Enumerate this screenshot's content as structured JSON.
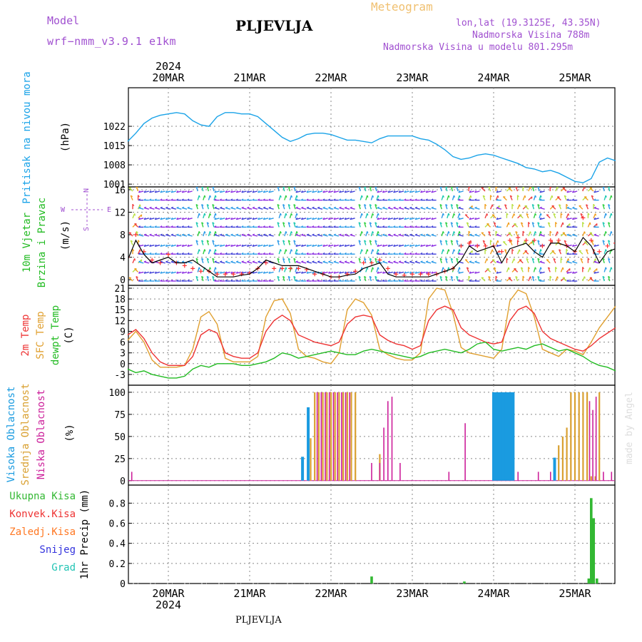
{
  "header": {
    "model_label": "Model",
    "model_name": "wrf−nmm_v3.9.1  e1km",
    "station": "PLJEVLJA",
    "product": "Meteogram",
    "coords": "lon,lat (19.3125E, 43.35N)",
    "altitude": "Nadmorska Visina 788m",
    "model_altitude": "Nadmorska Visina u modelu 801.295m",
    "watermark": "made by Angel",
    "footer_station": "PLJEVLJA"
  },
  "time_axis": {
    "year": "2024",
    "dates": [
      "20MAR",
      "21MAR",
      "22MAR",
      "23MAR",
      "24MAR",
      "25MAR"
    ]
  },
  "panels": {
    "pressure": {
      "labels": [
        "Pritisak na nivou mora"
      ],
      "unit": "(hPa)"
    },
    "wind": {
      "labels": [
        "10m Vjetar",
        "Brzina i Pravac"
      ],
      "unit": "(m/s)",
      "compass": {
        "n": "N",
        "s": "S",
        "e": "E",
        "w": "W"
      }
    },
    "temp": {
      "labels": [
        "2m Temp",
        "SFC Temp",
        "dewpt Temp"
      ],
      "unit": "(C)"
    },
    "cloud": {
      "labels": [
        "Visoka Oblacnost",
        "Srednja Oblacnost",
        "Niska Oblacnost"
      ],
      "unit": "(%)"
    },
    "precip": {
      "labels": [
        "Ukupna Kisa",
        "Konvek.Kisa",
        "Zaledj.Kisa",
        "Snijeg",
        "Grad"
      ],
      "unit": "1hr Precip (mm)"
    }
  },
  "colors": {
    "pressure": "#1aa3e8",
    "wind_speed": "#000000",
    "wind_gust": "#ff3030",
    "temp_2m": "#ee3333",
    "temp_sfc": "#e0a030",
    "temp_dew": "#22bb22",
    "cloud_high": "#1a9be0",
    "cloud_mid": "#d9a030",
    "cloud_low": "#cc1f9a",
    "precip_total": "#33b833",
    "precip_conv": "#ee3333",
    "precip_frz": "#ff7722",
    "precip_snow": "#3333dd",
    "precip_hail": "#22c4b4",
    "label_purple": "#a050d0",
    "label_orange": "#f0c070",
    "label_cyan": "#1aa3e8",
    "label_green": "#22bb22"
  },
  "chart_data": [
    {
      "type": "line",
      "title": "Pritisak na nivou mora",
      "ylabel": "(hPa)",
      "yticks": [
        1001,
        1008,
        1015,
        1022
      ],
      "ylim": [
        1000,
        1036
      ],
      "x_day": [
        -0.5,
        -0.4,
        -0.3,
        -0.2,
        -0.1,
        0,
        0.1,
        0.2,
        0.3,
        0.4,
        0.5,
        0.6,
        0.7,
        0.8,
        0.9,
        1.0,
        1.1,
        1.2,
        1.3,
        1.4,
        1.5,
        1.6,
        1.7,
        1.8,
        1.9,
        2.0,
        2.1,
        2.2,
        2.3,
        2.4,
        2.5,
        2.6,
        2.7,
        2.8,
        2.9,
        3.0,
        3.1,
        3.2,
        3.3,
        3.4,
        3.5,
        3.6,
        3.7,
        3.8,
        3.9,
        4.0,
        4.1,
        4.2,
        4.3,
        4.4,
        4.5,
        4.6,
        4.7,
        4.8,
        4.9,
        5.0,
        5.1,
        5.2,
        5.3,
        5.4,
        5.5
      ],
      "series": [
        {
          "values": [
            1016.5,
            1019.5,
            1023.0,
            1025.0,
            1026.0,
            1026.5,
            1027.0,
            1026.5,
            1024.0,
            1022.5,
            1022.0,
            1025.5,
            1027.0,
            1027.0,
            1026.5,
            1026.5,
            1025.5,
            1023.0,
            1020.5,
            1018.0,
            1016.5,
            1017.5,
            1019.0,
            1019.5,
            1019.5,
            1019.0,
            1018.0,
            1017.0,
            1017.0,
            1016.5,
            1016.0,
            1017.5,
            1018.5,
            1018.5,
            1018.5,
            1018.5,
            1017.5,
            1017.0,
            1015.5,
            1013.5,
            1011.0,
            1010.0,
            1010.5,
            1011.5,
            1012.0,
            1011.5,
            1010.5,
            1009.5,
            1008.5,
            1007.0,
            1006.5,
            1005.5,
            1006.0,
            1005.0,
            1003.5,
            1002.0,
            1001.5,
            1003.0,
            1009.0,
            1010.5,
            1009.5
          ]
        }
      ]
    },
    {
      "type": "line",
      "title": "10m Vjetar Brzina i Pravac",
      "ylabel": "(m/s)",
      "yticks": [
        0,
        4,
        8,
        12,
        16
      ],
      "ylim": [
        -1,
        16.5
      ],
      "x_day": [
        -0.5,
        -0.4,
        -0.3,
        -0.2,
        -0.1,
        0,
        0.1,
        0.2,
        0.3,
        0.4,
        0.5,
        0.6,
        0.7,
        0.8,
        0.9,
        1.0,
        1.1,
        1.2,
        1.3,
        1.4,
        1.5,
        1.6,
        1.7,
        1.8,
        1.9,
        2.0,
        2.1,
        2.2,
        2.3,
        2.4,
        2.5,
        2.6,
        2.7,
        2.8,
        2.9,
        3.0,
        3.1,
        3.2,
        3.3,
        3.4,
        3.5,
        3.6,
        3.7,
        3.8,
        3.9,
        4.0,
        4.1,
        4.2,
        4.3,
        4.4,
        4.5,
        4.6,
        4.7,
        4.8,
        4.9,
        5.0,
        5.1,
        5.2,
        5.3,
        5.4,
        5.5
      ],
      "series": [
        {
          "values": [
            3.5,
            7.0,
            4.5,
            3.0,
            3.5,
            4.0,
            3.0,
            3.0,
            3.5,
            2.5,
            1.5,
            0.5,
            0.5,
            0.5,
            0.8,
            1.0,
            2.0,
            3.5,
            3.0,
            2.5,
            2.5,
            2.5,
            2.0,
            1.5,
            1.0,
            0.5,
            0.5,
            0.8,
            1.0,
            2.0,
            2.5,
            3.0,
            1.0,
            0.5,
            0.5,
            0.5,
            0.5,
            0.5,
            1.0,
            1.5,
            2.0,
            3.5,
            6.0,
            5.0,
            5.5,
            6.0,
            3.0,
            5.5,
            6.0,
            6.5,
            5.0,
            4.0,
            6.5,
            6.5,
            6.0,
            5.0,
            7.5,
            6.0,
            3.0,
            5.0,
            5.5
          ]
        },
        {
          "values": [
            4.0,
            8.0,
            5.0,
            3.5,
            3.0,
            4.5,
            3.0,
            2.5,
            2.0,
            1.5,
            1.5,
            1.0,
            1.0,
            1.0,
            1.0,
            1.2,
            2.0,
            3.0,
            2.0,
            2.0,
            2.0,
            2.0,
            1.8,
            1.0,
            1.0,
            0.5,
            0.5,
            1.0,
            1.5,
            3.0,
            3.0,
            3.5,
            2.0,
            1.0,
            0.8,
            1.0,
            1.0,
            1.0,
            1.0,
            1.5,
            2.0,
            6.0,
            6.5,
            6.0,
            6.0,
            6.0,
            5.0,
            7.0,
            7.5,
            7.0,
            7.0,
            6.0,
            7.0,
            7.0,
            6.0,
            5.0,
            11.0,
            7.0,
            5.0,
            6.0,
            6.5
          ]
        }
      ]
    },
    {
      "type": "line",
      "title": "2m Temp / SFC Temp / dewpt Temp",
      "ylabel": "(C)",
      "yticks": [
        -3,
        0,
        3,
        6,
        9,
        12,
        15,
        18,
        21
      ],
      "ylim": [
        -6,
        21.8
      ],
      "x_day": [
        -0.5,
        -0.4,
        -0.3,
        -0.2,
        -0.1,
        0,
        0.1,
        0.2,
        0.3,
        0.4,
        0.5,
        0.6,
        0.7,
        0.8,
        0.9,
        1.0,
        1.1,
        1.2,
        1.3,
        1.4,
        1.5,
        1.6,
        1.7,
        1.8,
        1.9,
        2.0,
        2.1,
        2.2,
        2.3,
        2.4,
        2.5,
        2.6,
        2.7,
        2.8,
        2.9,
        3.0,
        3.1,
        3.2,
        3.3,
        3.4,
        3.5,
        3.6,
        3.7,
        3.8,
        3.9,
        4.0,
        4.1,
        4.2,
        4.3,
        4.4,
        4.5,
        4.6,
        4.7,
        4.8,
        4.9,
        5.0,
        5.1,
        5.2,
        5.3,
        5.4,
        5.5
      ],
      "series": [
        {
          "values": [
            8.0,
            9.5,
            7.0,
            3.0,
            0.5,
            -0.5,
            -0.5,
            -0.5,
            2.0,
            8.0,
            9.5,
            8.5,
            3.0,
            2.0,
            1.5,
            1.5,
            3.0,
            9.0,
            12.0,
            13.5,
            12.0,
            8.0,
            7.0,
            6.0,
            5.5,
            5.0,
            6.0,
            11.0,
            13.0,
            13.5,
            13.0,
            8.0,
            6.5,
            5.5,
            5.0,
            4.0,
            5.0,
            12.0,
            15.0,
            16.0,
            15.0,
            10.0,
            8.0,
            7.0,
            6.0,
            5.5,
            6.0,
            12.0,
            15.0,
            16.0,
            14.0,
            9.0,
            7.0,
            6.0,
            5.0,
            4.0,
            3.5,
            5.0,
            7.0,
            8.5,
            10.0
          ]
        },
        {
          "values": [
            6.5,
            9.0,
            6.0,
            1.0,
            -1.0,
            -1.0,
            -1.0,
            -0.5,
            4.0,
            13.0,
            14.5,
            11.0,
            1.5,
            0.5,
            0.5,
            0.5,
            2.0,
            13.0,
            17.5,
            18.0,
            14.0,
            4.0,
            2.0,
            1.5,
            0.5,
            0.0,
            3.0,
            15.0,
            18.0,
            17.0,
            13.5,
            4.0,
            2.5,
            1.5,
            1.0,
            1.0,
            3.0,
            18.0,
            21.0,
            20.5,
            14.0,
            4.5,
            3.0,
            2.5,
            2.0,
            1.5,
            4.0,
            17.5,
            20.5,
            19.5,
            13.0,
            4.0,
            3.0,
            2.0,
            4.0,
            3.5,
            2.5,
            6.0,
            10.0,
            13.0,
            16.0
          ]
        },
        {
          "values": [
            -1.5,
            -2.5,
            -2.0,
            -3.0,
            -3.5,
            -4.0,
            -4.0,
            -3.5,
            -1.5,
            -0.5,
            -1.0,
            0.0,
            0.0,
            0.0,
            -0.5,
            -0.5,
            0.0,
            0.5,
            1.5,
            3.0,
            2.5,
            1.5,
            2.0,
            2.5,
            3.0,
            3.5,
            3.0,
            2.5,
            2.5,
            3.5,
            4.0,
            3.5,
            3.0,
            2.5,
            2.0,
            1.5,
            2.0,
            3.0,
            3.5,
            4.0,
            3.5,
            3.0,
            4.0,
            5.5,
            6.0,
            4.0,
            3.5,
            4.0,
            4.5,
            4.0,
            5.0,
            5.5,
            4.5,
            3.5,
            4.0,
            3.0,
            2.0,
            0.5,
            -0.5,
            -1.0,
            -2.0
          ]
        }
      ]
    },
    {
      "type": "bar",
      "title": "Visoka / Srednja / Niska Oblacnost",
      "ylabel": "(%)",
      "yticks": [
        0,
        25,
        50,
        75,
        100
      ],
      "ylim": [
        -5,
        108
      ],
      "series": [
        {
          "name": "Visoka Oblacnost",
          "x_day": [
            1.65,
            1.72,
            4.0,
            4.03,
            4.06,
            4.09,
            4.12,
            4.15,
            4.18,
            4.21,
            4.24,
            4.75
          ],
          "values": [
            27,
            83,
            100,
            100,
            100,
            100,
            100,
            100,
            100,
            100,
            100,
            26
          ]
        },
        {
          "name": "Srednja Oblacnost",
          "x_day": [
            1.75,
            1.8,
            1.85,
            1.9,
            1.95,
            2.0,
            2.05,
            2.1,
            2.15,
            2.2,
            2.25,
            2.3,
            2.6,
            4.8,
            4.85,
            4.9,
            4.95,
            5.0,
            5.05,
            5.1,
            5.15,
            5.2,
            5.25,
            5.3
          ],
          "values": [
            48,
            100,
            100,
            100,
            100,
            100,
            100,
            100,
            100,
            100,
            100,
            100,
            30,
            40,
            50,
            60,
            100,
            100,
            100,
            100,
            100,
            5,
            5,
            100
          ]
        },
        {
          "name": "Niska Oblacnost",
          "x_day": [
            -0.45,
            1.83,
            1.88,
            1.93,
            1.98,
            2.03,
            2.08,
            2.13,
            2.18,
            2.23,
            2.5,
            2.6,
            2.65,
            2.7,
            2.75,
            2.85,
            3.45,
            3.65,
            4.3,
            4.55,
            4.7,
            5.18,
            5.22,
            5.26,
            5.35,
            5.45
          ],
          "values": [
            10,
            100,
            100,
            100,
            100,
            100,
            100,
            100,
            100,
            100,
            20,
            20,
            60,
            90,
            95,
            20,
            10,
            65,
            10,
            10,
            10,
            90,
            80,
            95,
            10,
            10
          ]
        }
      ]
    },
    {
      "type": "bar",
      "title": "1hr Precip",
      "ylabel": "1hr Precip (mm)",
      "yticks": [
        0,
        0.2,
        0.4,
        0.6,
        0.8
      ],
      "ylim": [
        0,
        0.98
      ],
      "series": [
        {
          "name": "Ukupna Kisa",
          "x_day": [
            2.5,
            3.64,
            5.17,
            5.2,
            5.23,
            5.27
          ],
          "values": [
            0.07,
            0.02,
            0.05,
            0.85,
            0.65,
            0.05
          ]
        }
      ]
    }
  ]
}
